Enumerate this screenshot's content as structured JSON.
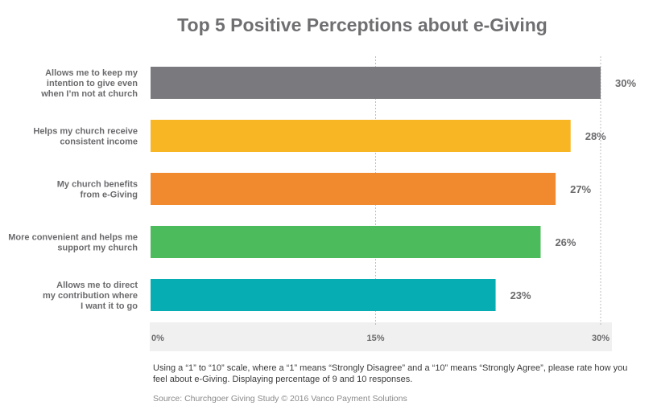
{
  "chart_data": {
    "type": "bar",
    "orientation": "horizontal",
    "title": "Top 5 Positive Perceptions about e-Giving",
    "categories": [
      [
        "Allows me to keep my",
        "intention to give even",
        "when I’m not at church"
      ],
      [
        "Helps my church receive",
        "consistent income"
      ],
      [
        "My church benefits",
        "from e-Giving"
      ],
      [
        "More convenient and helps me",
        "support my church"
      ],
      [
        "Allows me to direct",
        "my contribution where",
        "I want it to go"
      ]
    ],
    "values": [
      30,
      28,
      27,
      26,
      23
    ],
    "value_labels": [
      "30%",
      "28%",
      "27%",
      "26%",
      "23%"
    ],
    "colors": [
      "#7a797e",
      "#f8b625",
      "#f18a2e",
      "#4cbb5c",
      "#06aeb3"
    ],
    "xlim": [
      0,
      30
    ],
    "xticks": [
      0,
      15,
      30
    ],
    "xtick_labels": [
      "0%",
      "15%",
      "30%"
    ],
    "grid": "vertical dotted at 15% and 30%",
    "xlabel": "",
    "ylabel": ""
  },
  "footnote": "Using a “1” to “10” scale, where a “1” means “Strongly Disagree” and a “10” means “Strongly Agree”, please rate how you feel about e-Giving. Displaying percentage of 9 and 10 responses.",
  "source": "Source: Churchgoer Giving Study © 2016 Vanco Payment Solutions"
}
